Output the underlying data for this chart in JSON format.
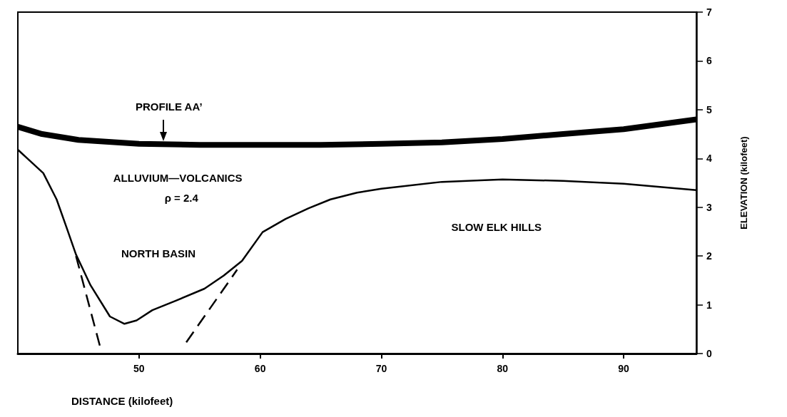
{
  "chart_data": {
    "type": "line",
    "xlabel": "DISTANCE (kilofeet)",
    "ylabel": "ELEVATION (kilofeet)",
    "xlim": [
      40,
      96
    ],
    "xticks": [
      50,
      60,
      70,
      80,
      90
    ],
    "ylim": [
      0,
      7
    ],
    "yticks": [
      0,
      1,
      2,
      3,
      4,
      5,
      6,
      7
    ],
    "grid": false,
    "marker": "none",
    "series": [
      {
        "color": "#000000",
        "line_style": "solid",
        "x": [
          40,
          42,
          45,
          50,
          55,
          60,
          65,
          70,
          75,
          80,
          85,
          90,
          96
        ],
        "values": [
          4.65,
          4.5,
          4.38,
          4.3,
          4.28,
          4.28,
          4.28,
          4.3,
          4.33,
          4.4,
          4.5,
          4.6,
          4.8
        ]
      },
      {
        "color": "#000000",
        "line_style": "solid",
        "x": [
          40,
          41,
          42.1,
          43.2,
          44,
          44.8,
          46,
          47.6,
          48.8,
          49.8,
          51.1,
          53,
          55.4,
          57,
          58.5,
          60.2,
          62.1,
          64,
          65.8,
          68,
          70,
          75,
          80,
          85,
          90,
          96
        ],
        "values": [
          4.18,
          3.95,
          3.7,
          3.16,
          2.6,
          2.03,
          1.4,
          0.76,
          0.61,
          0.68,
          0.89,
          1.08,
          1.33,
          1.6,
          1.9,
          2.49,
          2.76,
          2.98,
          3.16,
          3.3,
          3.38,
          3.52,
          3.57,
          3.54,
          3.48,
          3.35
        ]
      },
      {
        "color": "#000000",
        "line_style": "dashed",
        "x": [
          44.8,
          46.8
        ],
        "values": [
          2.0,
          0.13
        ]
      },
      {
        "color": "#000000",
        "line_style": "dashed",
        "x": [
          53.9,
          58.1
        ],
        "values": [
          0.23,
          1.72
        ]
      }
    ],
    "annotations": [
      {
        "text": "PROFILE AA’",
        "x": 52,
        "y": 4.3
      },
      "ALLUVIUM—VOLCANICS",
      "ρ = 2.4",
      "NORTH BASIN",
      "SLOW ELK HILLS"
    ]
  }
}
